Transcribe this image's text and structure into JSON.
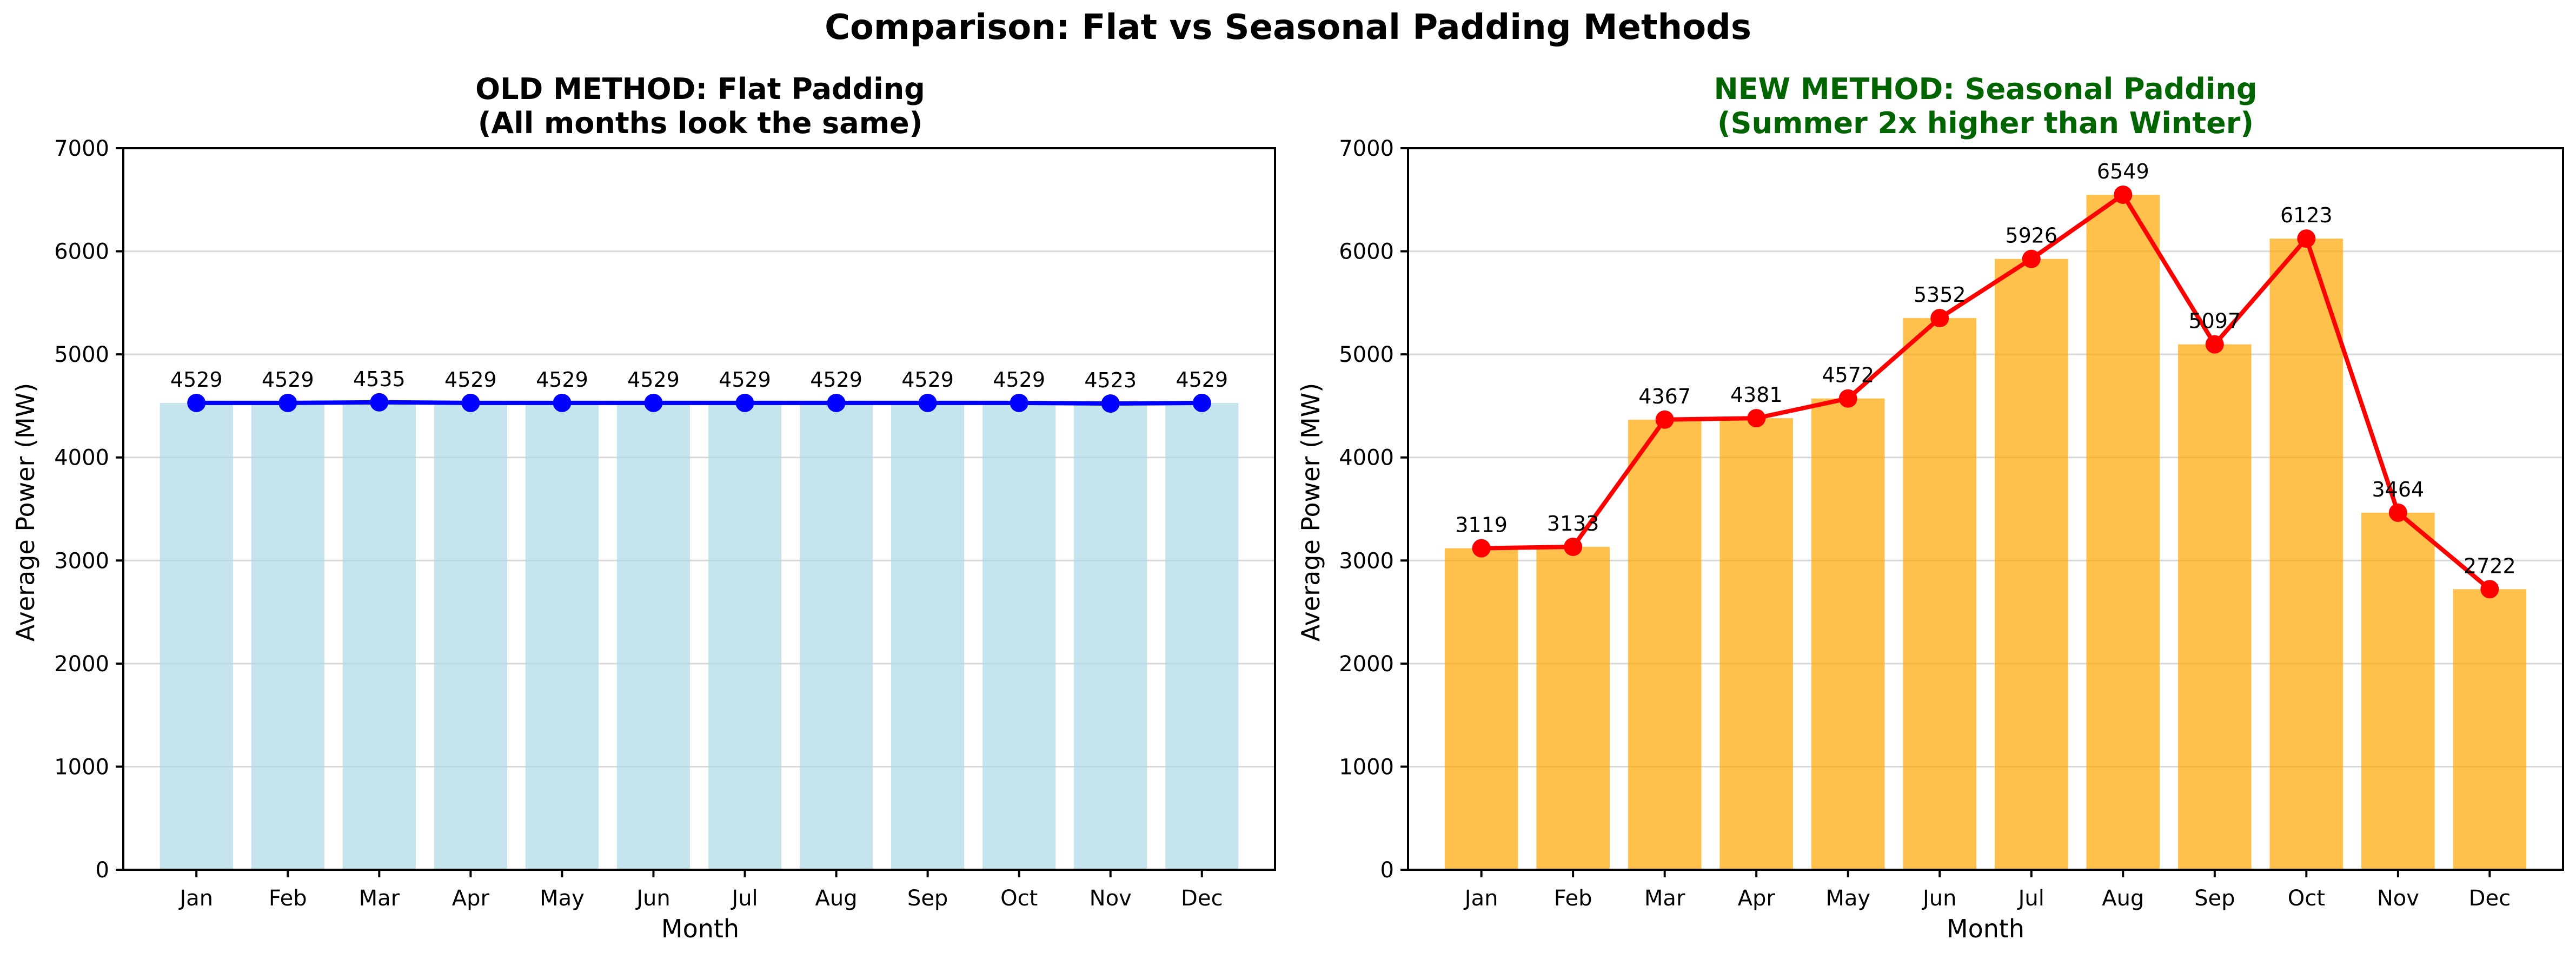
{
  "figure": {
    "title": "Comparison: Flat vs Seasonal Padding Methods"
  },
  "colors": {
    "left_bar": "#add8e6",
    "left_line": "#0000ff",
    "right_bar": "#ffa500",
    "right_line": "#ff0000",
    "right_title": "#006400",
    "grid": "#d9d9d9"
  },
  "chart_data": [
    {
      "type": "bar",
      "title": "OLD METHOD: Flat Padding",
      "subtitle": "(All months look the same)",
      "xlabel": "Month",
      "ylabel": "Average Power (MW)",
      "ylim": [
        0,
        7000
      ],
      "yticks": [
        0,
        1000,
        2000,
        3000,
        4000,
        5000,
        6000,
        7000
      ],
      "grid": "horizontal",
      "categories": [
        "Jan",
        "Feb",
        "Mar",
        "Apr",
        "May",
        "Jun",
        "Jul",
        "Aug",
        "Sep",
        "Oct",
        "Nov",
        "Dec"
      ],
      "series": [
        {
          "kind": "bar",
          "color": "#add8e6",
          "values": [
            4529,
            4529,
            4535,
            4529,
            4529,
            4529,
            4529,
            4529,
            4529,
            4529,
            4523,
            4529
          ]
        },
        {
          "kind": "line",
          "marker": "circle",
          "color": "#0000ff",
          "values": [
            4529,
            4529,
            4535,
            4529,
            4529,
            4529,
            4529,
            4529,
            4529,
            4529,
            4523,
            4529
          ]
        }
      ],
      "data_labels": [
        "4529",
        "4529",
        "4535",
        "4529",
        "4529",
        "4529",
        "4529",
        "4529",
        "4529",
        "4529",
        "4523",
        "4529"
      ]
    },
    {
      "type": "bar",
      "title": "NEW METHOD: Seasonal Padding",
      "subtitle": "(Summer 2x higher than Winter)",
      "xlabel": "Month",
      "ylabel": "Average Power (MW)",
      "ylim": [
        0,
        7000
      ],
      "yticks": [
        0,
        1000,
        2000,
        3000,
        4000,
        5000,
        6000,
        7000
      ],
      "grid": "horizontal",
      "categories": [
        "Jan",
        "Feb",
        "Mar",
        "Apr",
        "May",
        "Jun",
        "Jul",
        "Aug",
        "Sep",
        "Oct",
        "Nov",
        "Dec"
      ],
      "series": [
        {
          "kind": "bar",
          "color": "#ffa500",
          "values": [
            3119,
            3133,
            4367,
            4381,
            4572,
            5352,
            5926,
            6549,
            5097,
            6123,
            3464,
            2722
          ]
        },
        {
          "kind": "line",
          "marker": "circle",
          "color": "#ff0000",
          "values": [
            3119,
            3133,
            4367,
            4381,
            4572,
            5352,
            5926,
            6549,
            5097,
            6123,
            3464,
            2722
          ]
        }
      ],
      "data_labels": [
        "3119",
        "3133",
        "4367",
        "4381",
        "4572",
        "5352",
        "5926",
        "6549",
        "5097",
        "6123",
        "3464",
        "2722"
      ]
    }
  ]
}
